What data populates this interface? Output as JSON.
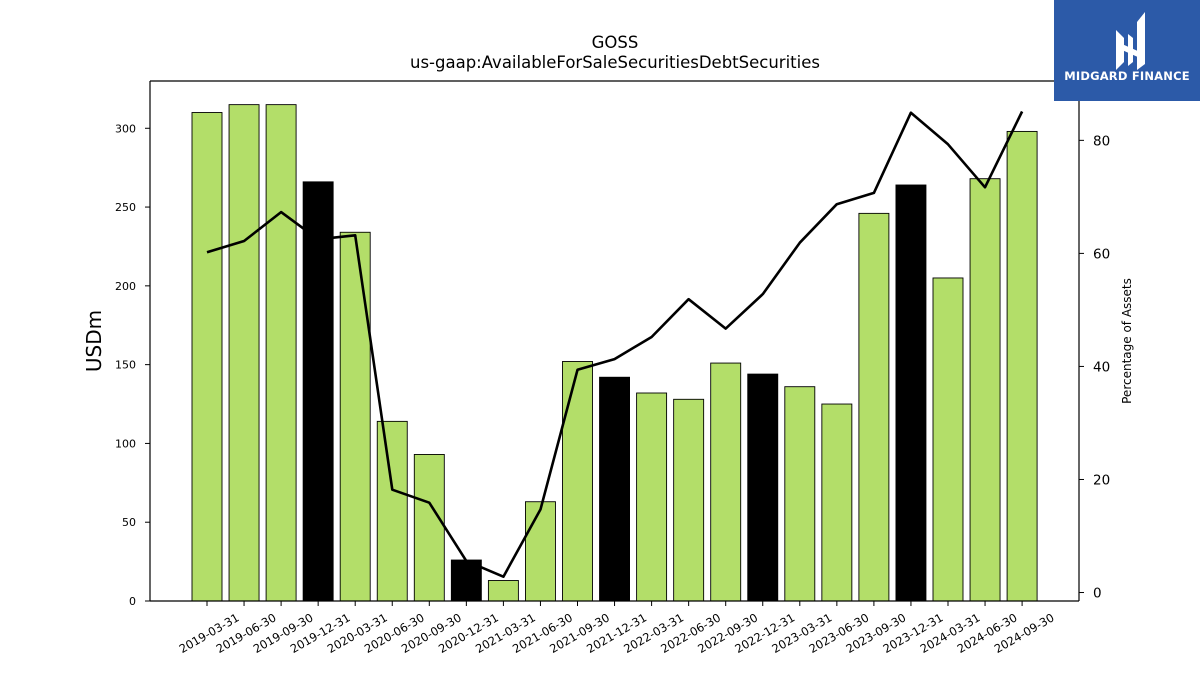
{
  "chart_data": {
    "type": "bar",
    "title": "GOSS",
    "subtitle": "us-gaap:AvailableForSaleSecuritiesDebtSecurities",
    "ylabel": "USDm",
    "y2label": "Percentage of Assets",
    "ylim": [
      0,
      330
    ],
    "y2lim": [
      -1.5,
      90.5
    ],
    "yticks": [
      0,
      50,
      100,
      150,
      200,
      250,
      300
    ],
    "y2ticks": [
      0,
      20,
      40,
      60,
      80
    ],
    "categories": [
      "2019-03-31",
      "2019-06-30",
      "2019-09-30",
      "2019-12-31",
      "2020-03-31",
      "2020-06-30",
      "2020-09-30",
      "2020-12-31",
      "2021-03-31",
      "2021-06-30",
      "2021-09-30",
      "2021-12-31",
      "2022-03-31",
      "2022-06-30",
      "2022-09-30",
      "2022-12-31",
      "2023-03-31",
      "2023-06-30",
      "2023-09-30",
      "2023-12-31",
      "2024-03-31",
      "2024-06-30",
      "2024-09-30"
    ],
    "series": [
      {
        "values": [
          310,
          315,
          315,
          266,
          234,
          114,
          93,
          26,
          13,
          63,
          152,
          142,
          132,
          128,
          151,
          144,
          136,
          125,
          246,
          264,
          205,
          268,
          298
        ],
        "colors": [
          "#b3de69",
          "#b3de69",
          "#b3de69",
          "#000000",
          "#b3de69",
          "#b3de69",
          "#b3de69",
          "#000000",
          "#b3de69",
          "#b3de69",
          "#b3de69",
          "#000000",
          "#b3de69",
          "#b3de69",
          "#b3de69",
          "#000000",
          "#b3de69",
          "#b3de69",
          "#b3de69",
          "#000000",
          "#b3de69",
          "#b3de69",
          "#b3de69"
        ]
      },
      {
        "axis": "right",
        "type": "line",
        "color": "#000000",
        "values": [
          60.2,
          62.2,
          67.3,
          62.5,
          63.2,
          18.2,
          15.9,
          5.6,
          2.8,
          14.7,
          39.4,
          41.3,
          45.2,
          51.9,
          46.7,
          52.8,
          61.9,
          68.7,
          70.7,
          84.9,
          79.3,
          71.7,
          85.1
        ]
      }
    ]
  },
  "logo": {
    "text": "MIDGARD FINANCE",
    "bg_color": "#2c5aa8"
  }
}
